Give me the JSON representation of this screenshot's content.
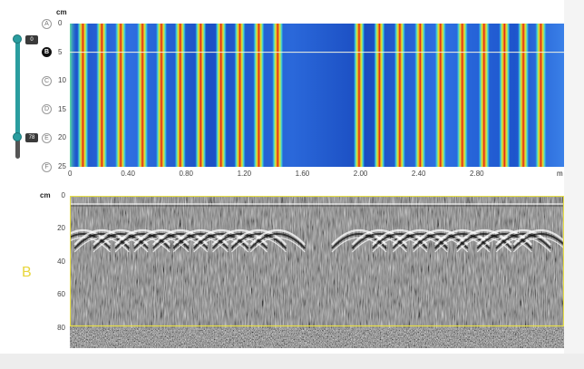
{
  "cscan": {
    "unit_depth": "cm",
    "unit_distance": "m",
    "depth_ticks": [
      "0",
      "5",
      "10",
      "15",
      "20",
      "25"
    ],
    "distance_ticks": [
      "0",
      "0.40",
      "0.80",
      "1.20",
      "1.60",
      "2.00",
      "2.40",
      "2.80"
    ],
    "markers": [
      "A",
      "B",
      "C",
      "D",
      "E",
      "F"
    ],
    "active_marker": "B",
    "rebar_positions_m": [
      0.09,
      0.22,
      0.35,
      0.5,
      0.63,
      0.76,
      0.9,
      1.04,
      1.17,
      1.3,
      1.43,
      1.99,
      2.13,
      2.27,
      2.41,
      2.55,
      2.7,
      2.85,
      2.99,
      3.12,
      3.24
    ]
  },
  "slider": {
    "top_value": "0",
    "bottom_value": "78"
  },
  "bscan": {
    "unit_depth": "cm",
    "depth_ticks": [
      "0",
      "20",
      "40",
      "60",
      "80"
    ],
    "label": "B"
  },
  "colors": {
    "accent": "#2a9d9f",
    "selection": "#e8d63b"
  }
}
